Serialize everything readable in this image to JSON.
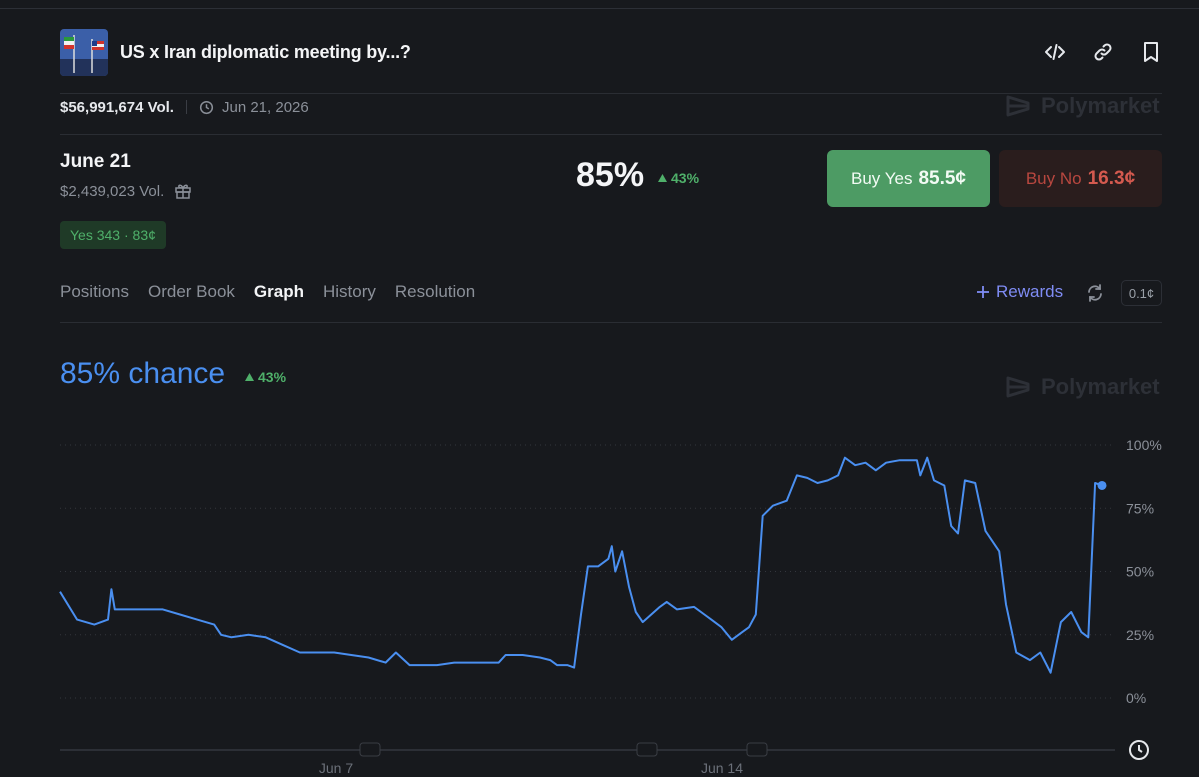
{
  "header": {
    "title": "US x Iran diplomatic meeting by...?",
    "icons": [
      "embed-icon",
      "link-icon",
      "bookmark-icon"
    ]
  },
  "meta": {
    "volume": "$56,991,674 Vol.",
    "end_date": "Jun 21, 2026"
  },
  "watermark": "Polymarket",
  "outcome": {
    "name": "June 21",
    "volume": "$2,439,023 Vol.",
    "yes_badge": "Yes 343 · 83¢",
    "probability": "85%",
    "change": "43%",
    "buy_yes_label": "Buy Yes",
    "buy_yes_price": "85.5¢",
    "buy_no_label": "Buy No",
    "buy_no_price": "16.3¢"
  },
  "tabs": [
    "Positions",
    "Order Book",
    "Graph",
    "History",
    "Resolution"
  ],
  "active_tab": "Graph",
  "toolbar": {
    "rewards_label": "Rewards",
    "tick_size": "0.1¢"
  },
  "chart_header": {
    "chance": "85% chance",
    "change": "43%"
  },
  "colors": {
    "accent": "#4a8ff0",
    "positive": "#4fb06a",
    "negative": "#d45a4f",
    "rewards": "#7f8cf4"
  },
  "chart_data": {
    "type": "line",
    "y_ticks": [
      "100%",
      "75%",
      "50%",
      "25%",
      "0%"
    ],
    "ylim": [
      0,
      100
    ],
    "x_ticks": [
      "Jun 7",
      "Jun 14"
    ],
    "grid": true,
    "series": [
      {
        "values": [
          [
            0.0,
            42
          ],
          [
            0.5,
            31
          ],
          [
            1.0,
            29
          ],
          [
            1.4,
            31
          ],
          [
            1.5,
            43
          ],
          [
            1.6,
            35
          ],
          [
            2.0,
            35
          ],
          [
            3.0,
            35
          ],
          [
            3.5,
            33
          ],
          [
            4.0,
            31
          ],
          [
            4.5,
            29
          ],
          [
            4.7,
            25
          ],
          [
            5.0,
            24
          ],
          [
            5.5,
            25
          ],
          [
            6.0,
            24
          ],
          [
            6.5,
            21
          ],
          [
            7.0,
            18
          ],
          [
            8.0,
            18
          ],
          [
            8.5,
            17
          ],
          [
            9.0,
            16
          ],
          [
            9.5,
            14
          ],
          [
            9.8,
            18
          ],
          [
            10.2,
            13
          ],
          [
            10.6,
            13
          ],
          [
            11.0,
            13
          ],
          [
            11.5,
            14
          ],
          [
            12.0,
            14
          ],
          [
            12.8,
            14
          ],
          [
            13.0,
            17
          ],
          [
            13.5,
            17
          ],
          [
            14.0,
            16
          ],
          [
            14.3,
            15
          ],
          [
            14.5,
            13
          ],
          [
            14.8,
            13
          ],
          [
            15.0,
            12
          ],
          [
            15.2,
            33
          ],
          [
            15.4,
            52
          ],
          [
            15.7,
            52
          ],
          [
            16.0,
            55
          ],
          [
            16.1,
            60
          ],
          [
            16.2,
            50
          ],
          [
            16.4,
            58
          ],
          [
            16.6,
            44
          ],
          [
            16.8,
            34
          ],
          [
            17.0,
            30
          ],
          [
            17.5,
            36
          ],
          [
            17.7,
            38
          ],
          [
            18.0,
            35
          ],
          [
            18.5,
            36
          ],
          [
            18.8,
            33
          ],
          [
            19.0,
            31
          ],
          [
            19.3,
            28
          ],
          [
            19.6,
            23
          ],
          [
            19.9,
            26
          ],
          [
            20.1,
            28
          ],
          [
            20.3,
            33
          ],
          [
            20.5,
            72
          ],
          [
            20.8,
            76
          ],
          [
            21.2,
            78
          ],
          [
            21.5,
            88
          ],
          [
            21.8,
            87
          ],
          [
            22.1,
            85
          ],
          [
            22.4,
            86
          ],
          [
            22.7,
            88
          ],
          [
            22.9,
            95
          ],
          [
            23.2,
            92
          ],
          [
            23.5,
            93
          ],
          [
            23.8,
            90
          ],
          [
            24.1,
            93
          ],
          [
            24.5,
            94
          ],
          [
            25.0,
            94
          ],
          [
            25.1,
            88
          ],
          [
            25.3,
            95
          ],
          [
            25.5,
            86
          ],
          [
            25.8,
            84
          ],
          [
            26.0,
            68
          ],
          [
            26.2,
            65
          ],
          [
            26.4,
            86
          ],
          [
            26.7,
            85
          ],
          [
            27.0,
            66
          ],
          [
            27.2,
            62
          ],
          [
            27.4,
            58
          ],
          [
            27.6,
            37
          ],
          [
            27.9,
            18
          ],
          [
            28.3,
            15
          ],
          [
            28.6,
            18
          ],
          [
            28.9,
            10
          ],
          [
            29.2,
            30
          ],
          [
            29.5,
            34
          ],
          [
            29.8,
            26
          ],
          [
            30.0,
            24
          ],
          [
            30.2,
            85
          ],
          [
            30.4,
            84
          ]
        ]
      }
    ],
    "x_range": [
      0,
      30.4
    ]
  }
}
